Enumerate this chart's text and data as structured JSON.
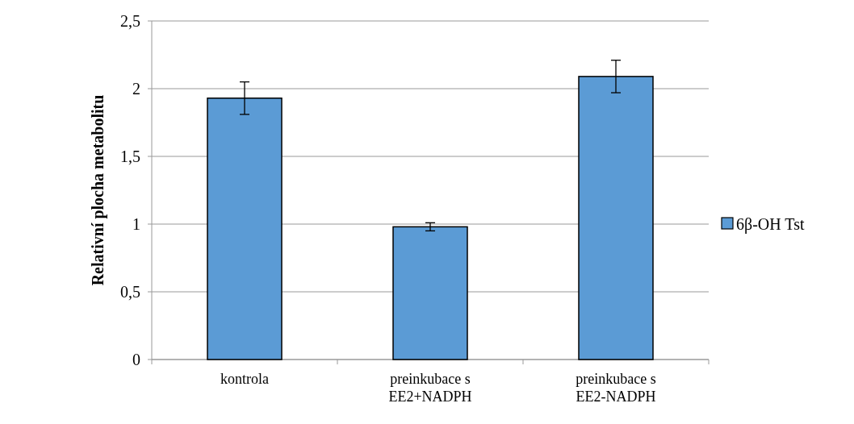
{
  "chart_data": {
    "type": "bar",
    "ylabel": "Relativní plocha metabolitu",
    "categories": [
      "kontrola",
      "preinkubace s\nEE2+NADPH",
      "preinkubace s\nEE2-NADPH"
    ],
    "series": [
      {
        "name": "6β-OH Tst",
        "color": "#5b9bd5",
        "values": [
          1.93,
          0.98,
          2.09
        ],
        "errors": [
          0.12,
          0.03,
          0.12
        ]
      }
    ],
    "ylim": [
      0,
      2.5
    ],
    "yticks": [
      {
        "value": 0,
        "label": "0"
      },
      {
        "value": 0.5,
        "label": "0,5"
      },
      {
        "value": 1,
        "label": "1"
      },
      {
        "value": 1.5,
        "label": "1,5"
      },
      {
        "value": 2,
        "label": "2"
      },
      {
        "value": 2.5,
        "label": "2,5"
      }
    ],
    "grid": "y",
    "legend": "right"
  }
}
